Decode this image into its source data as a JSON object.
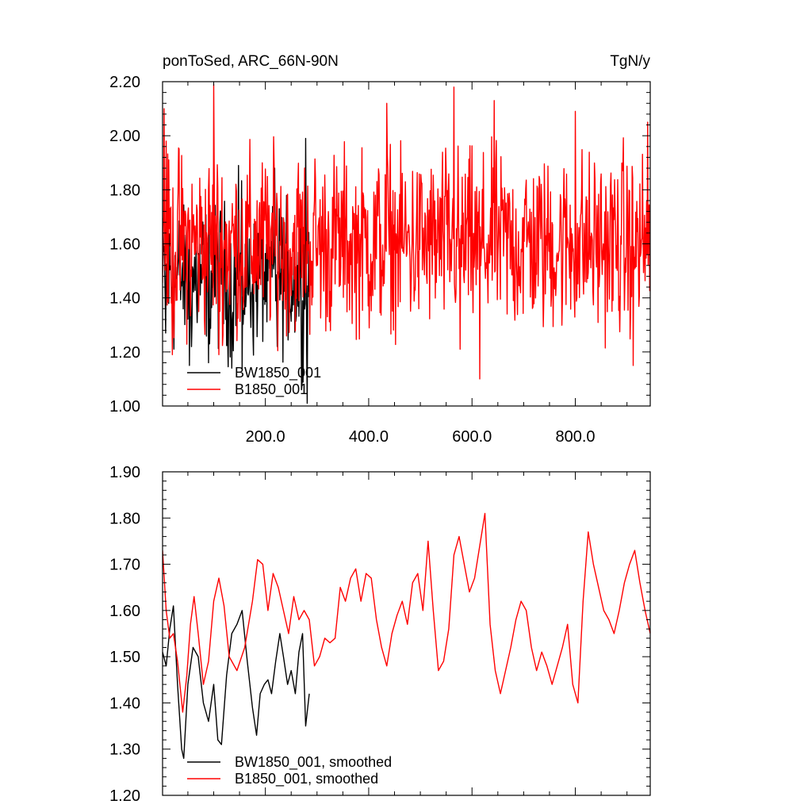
{
  "figure": {
    "title_left": "ponToSed, ARC_66N-90N",
    "title_right": "TgN/y"
  },
  "colors": {
    "BW1850_001": "#000000",
    "B1850_001": "#ff0000"
  },
  "chart_data": [
    {
      "type": "line",
      "title": "ponToSed, ARC_66N-90N",
      "unit_label": "TgN/y",
      "xlim": [
        1,
        945
      ],
      "ylim": [
        1.0,
        2.2
      ],
      "x_ticks": [
        200,
        400,
        600,
        800
      ],
      "x_tick_labels": [
        "200.0",
        "400.0",
        "600.0",
        "800.0"
      ],
      "y_ticks": [
        1.0,
        1.2,
        1.4,
        1.6,
        1.8,
        2.0,
        2.2
      ],
      "y_tick_labels": [
        "1.00",
        "1.20",
        "1.40",
        "1.60",
        "1.80",
        "2.00",
        "2.20"
      ],
      "legend_position": "bottom-left",
      "series": [
        {
          "name": "BW1850_001",
          "color": "#000000",
          "x_start": 1,
          "x_end": 285,
          "approx_mean": 1.47,
          "approx_range": [
            1.01,
            1.99
          ],
          "noise_amplitude": 0.13,
          "peaks": [
            [
              7,
              1.27
            ],
            [
              40,
              1.53
            ],
            [
              53,
              1.15
            ],
            [
              90,
              1.16
            ],
            [
              100,
              1.88
            ],
            [
              135,
              1.14
            ],
            [
              148,
              1.89
            ],
            [
              155,
              1.14
            ],
            [
              218,
              1.88
            ],
            [
              223,
              1.22
            ],
            [
              270,
              1.06
            ],
            [
              278,
              1.99
            ],
            [
              281,
              1.01
            ]
          ]
        },
        {
          "name": "B1850_001",
          "color": "#ff0000",
          "x_start": 1,
          "x_end": 945,
          "approx_mean": 1.6,
          "approx_range": [
            1.1,
            2.19
          ],
          "noise_amplitude": 0.16,
          "peaks": [
            [
              4,
              2.1
            ],
            [
              8,
              1.98
            ],
            [
              20,
              1.19
            ],
            [
              100,
              2.19
            ],
            [
              110,
              1.19
            ],
            [
              435,
              2.12
            ],
            [
              565,
              2.18
            ],
            [
              577,
              1.21
            ],
            [
              615,
              1.1
            ],
            [
              643,
              2.13
            ],
            [
              800,
              2.09
            ],
            [
              912,
              1.15
            ],
            [
              940,
              2.05
            ]
          ]
        }
      ]
    },
    {
      "type": "line",
      "xlim": [
        1,
        945
      ],
      "ylim": [
        1.2,
        1.9
      ],
      "x_ticks": [
        200,
        400,
        600,
        800
      ],
      "x_tick_labels": [],
      "y_ticks": [
        1.2,
        1.3,
        1.4,
        1.5,
        1.6,
        1.7,
        1.8,
        1.9
      ],
      "y_tick_labels": [
        "1.20",
        "1.30",
        "1.40",
        "1.50",
        "1.60",
        "1.70",
        "1.80",
        "1.90"
      ],
      "legend_position": "bottom-left",
      "series": [
        {
          "name": "BW1850_001, smoothed",
          "color": "#000000",
          "x_start": 1,
          "x_end": 285,
          "points": [
            [
              1,
              1.51
            ],
            [
              8,
              1.48
            ],
            [
              15,
              1.56
            ],
            [
              22,
              1.61
            ],
            [
              30,
              1.44
            ],
            [
              38,
              1.3
            ],
            [
              42,
              1.28
            ],
            [
              50,
              1.44
            ],
            [
              60,
              1.52
            ],
            [
              70,
              1.5
            ],
            [
              80,
              1.4
            ],
            [
              90,
              1.36
            ],
            [
              100,
              1.44
            ],
            [
              108,
              1.32
            ],
            [
              115,
              1.31
            ],
            [
              125,
              1.46
            ],
            [
              135,
              1.55
            ],
            [
              145,
              1.57
            ],
            [
              155,
              1.6
            ],
            [
              165,
              1.49
            ],
            [
              175,
              1.39
            ],
            [
              183,
              1.33
            ],
            [
              190,
              1.42
            ],
            [
              198,
              1.44
            ],
            [
              205,
              1.45
            ],
            [
              212,
              1.42
            ],
            [
              220,
              1.49
            ],
            [
              228,
              1.55
            ],
            [
              235,
              1.5
            ],
            [
              243,
              1.44
            ],
            [
              250,
              1.47
            ],
            [
              258,
              1.42
            ],
            [
              265,
              1.51
            ],
            [
              272,
              1.55
            ],
            [
              278,
              1.35
            ],
            [
              285,
              1.42
            ]
          ]
        },
        {
          "name": "B1850_001, smoothed",
          "color": "#ff0000",
          "x_start": 1,
          "x_end": 945,
          "points": [
            [
              1,
              1.73
            ],
            [
              8,
              1.6
            ],
            [
              15,
              1.54
            ],
            [
              22,
              1.55
            ],
            [
              30,
              1.49
            ],
            [
              40,
              1.38
            ],
            [
              48,
              1.46
            ],
            [
              55,
              1.57
            ],
            [
              62,
              1.63
            ],
            [
              70,
              1.55
            ],
            [
              80,
              1.44
            ],
            [
              90,
              1.49
            ],
            [
              100,
              1.62
            ],
            [
              110,
              1.67
            ],
            [
              120,
              1.61
            ],
            [
              130,
              1.5
            ],
            [
              145,
              1.47
            ],
            [
              160,
              1.52
            ],
            [
              175,
              1.62
            ],
            [
              185,
              1.71
            ],
            [
              195,
              1.7
            ],
            [
              205,
              1.6
            ],
            [
              215,
              1.68
            ],
            [
              225,
              1.65
            ],
            [
              235,
              1.6
            ],
            [
              245,
              1.55
            ],
            [
              255,
              1.63
            ],
            [
              265,
              1.58
            ],
            [
              275,
              1.6
            ],
            [
              285,
              1.58
            ],
            [
              295,
              1.48
            ],
            [
              305,
              1.5
            ],
            [
              315,
              1.54
            ],
            [
              325,
              1.53
            ],
            [
              335,
              1.54
            ],
            [
              345,
              1.65
            ],
            [
              355,
              1.62
            ],
            [
              365,
              1.67
            ],
            [
              375,
              1.69
            ],
            [
              385,
              1.62
            ],
            [
              395,
              1.68
            ],
            [
              405,
              1.67
            ],
            [
              415,
              1.58
            ],
            [
              425,
              1.52
            ],
            [
              435,
              1.48
            ],
            [
              445,
              1.55
            ],
            [
              455,
              1.59
            ],
            [
              465,
              1.62
            ],
            [
              475,
              1.57
            ],
            [
              485,
              1.66
            ],
            [
              495,
              1.68
            ],
            [
              505,
              1.6
            ],
            [
              515,
              1.75
            ],
            [
              525,
              1.6
            ],
            [
              535,
              1.47
            ],
            [
              545,
              1.49
            ],
            [
              555,
              1.56
            ],
            [
              565,
              1.72
            ],
            [
              575,
              1.76
            ],
            [
              585,
              1.7
            ],
            [
              595,
              1.64
            ],
            [
              605,
              1.67
            ],
            [
              615,
              1.74
            ],
            [
              625,
              1.81
            ],
            [
              635,
              1.57
            ],
            [
              645,
              1.47
            ],
            [
              655,
              1.42
            ],
            [
              665,
              1.47
            ],
            [
              675,
              1.52
            ],
            [
              685,
              1.58
            ],
            [
              695,
              1.62
            ],
            [
              705,
              1.6
            ],
            [
              715,
              1.52
            ],
            [
              725,
              1.47
            ],
            [
              735,
              1.51
            ],
            [
              745,
              1.48
            ],
            [
              755,
              1.44
            ],
            [
              765,
              1.48
            ],
            [
              775,
              1.52
            ],
            [
              785,
              1.57
            ],
            [
              795,
              1.44
            ],
            [
              805,
              1.4
            ],
            [
              815,
              1.62
            ],
            [
              825,
              1.77
            ],
            [
              835,
              1.7
            ],
            [
              845,
              1.65
            ],
            [
              855,
              1.6
            ],
            [
              865,
              1.58
            ],
            [
              875,
              1.55
            ],
            [
              885,
              1.6
            ],
            [
              895,
              1.66
            ],
            [
              905,
              1.7
            ],
            [
              915,
              1.73
            ],
            [
              925,
              1.66
            ],
            [
              935,
              1.6
            ],
            [
              945,
              1.55
            ]
          ]
        }
      ]
    }
  ]
}
